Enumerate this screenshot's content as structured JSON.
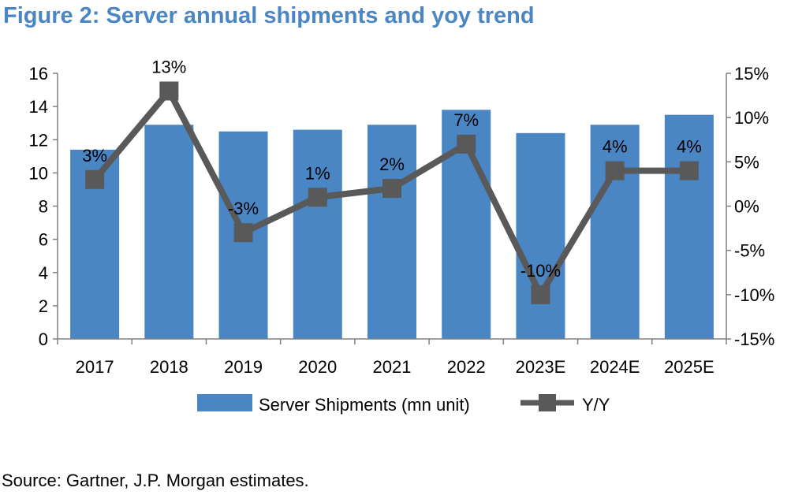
{
  "title": "Figure 2: Server annual shipments and yoy trend",
  "source": "Source: Gartner, J.P. Morgan estimates.",
  "chart_data": {
    "type": "bar",
    "categories": [
      "2017",
      "2018",
      "2019",
      "2020",
      "2021",
      "2022",
      "2023E",
      "2024E",
      "2025E"
    ],
    "series": [
      {
        "name": "Server Shipments (mn unit)",
        "type": "bar",
        "axis": "left",
        "color": "#4a86c4",
        "values": [
          11.4,
          12.9,
          12.5,
          12.6,
          12.9,
          13.8,
          12.4,
          12.9,
          13.5
        ]
      },
      {
        "name": "Y/Y",
        "type": "line",
        "axis": "right",
        "color": "#595959",
        "values": [
          3,
          13,
          -3,
          1,
          2,
          7,
          -10,
          4,
          4
        ],
        "labels": [
          "3%",
          "13%",
          "-3%",
          "1%",
          "2%",
          "7%",
          "-10%",
          "4%",
          "4%"
        ]
      }
    ],
    "y_left": {
      "min": 0,
      "max": 16,
      "ticks": [
        0,
        2,
        4,
        6,
        8,
        10,
        12,
        14,
        16
      ],
      "tick_labels": [
        "0",
        "2",
        "4",
        "6",
        "8",
        "10",
        "12",
        "14",
        "16"
      ]
    },
    "y_right": {
      "min": -15,
      "max": 15,
      "ticks": [
        -15,
        -10,
        -5,
        0,
        5,
        10,
        15
      ],
      "tick_labels": [
        "-15%",
        "-10%",
        "-5%",
        "0%",
        "5%",
        "10%",
        "15%"
      ]
    },
    "xlabel": "",
    "ylabel": "",
    "legend": {
      "position": "bottom",
      "items": [
        "Server Shipments (mn unit)",
        "Y/Y"
      ]
    },
    "grid": false
  }
}
